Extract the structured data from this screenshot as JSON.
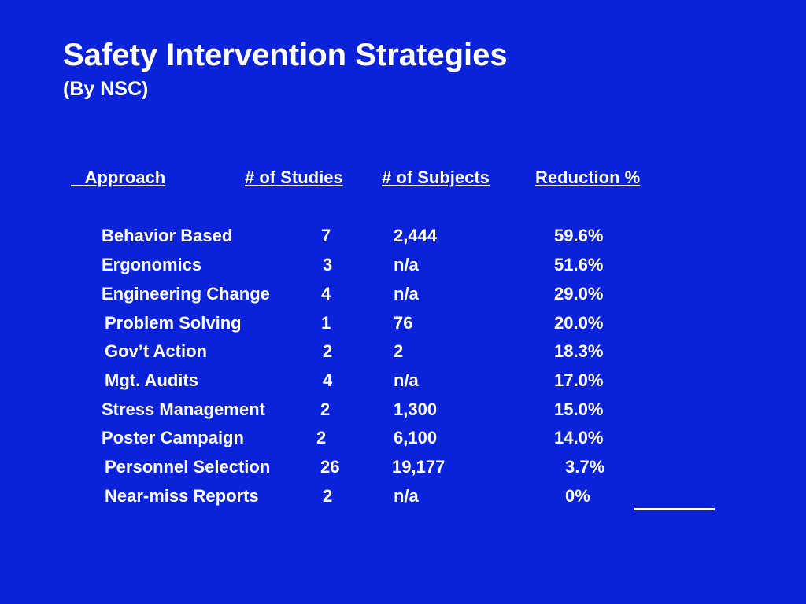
{
  "slide": {
    "title": "Safety Intervention Strategies",
    "subtitle": "(By NSC)",
    "colors": {
      "background": "#0a22d8",
      "text": "#ffffff"
    }
  },
  "table": {
    "headers": {
      "approach": "   Approach",
      "studies": "# of Studies",
      "subjects": "# of Subjects",
      "reduction": "Reduction %"
    },
    "rows": [
      {
        "approach": "Behavior Based",
        "studies": "7",
        "subjects": "2,444",
        "reduction": "59.6%"
      },
      {
        "approach": "Ergonomics",
        "studies": "3",
        "subjects": "n/a",
        "reduction": "51.6%"
      },
      {
        "approach": "Engineering Change",
        "studies": "4",
        "subjects": "n/a",
        "reduction": "29.0%"
      },
      {
        "approach": "Problem Solving",
        "studies": "1",
        "subjects": "76",
        "reduction": "20.0%"
      },
      {
        "approach": "Gov’t Action",
        "studies": "2",
        "subjects": "2",
        "reduction": "18.3%"
      },
      {
        "approach": "Mgt. Audits",
        "studies": "4",
        "subjects": "n/a",
        "reduction": "17.0%"
      },
      {
        "approach": "Stress Management",
        "studies": "2",
        "subjects": "1,300",
        "reduction": "15.0%"
      },
      {
        "approach": "Poster Campaign",
        "studies": "2",
        "subjects": "6,100",
        "reduction": "14.0%"
      },
      {
        "approach": "Personnel Selection",
        "studies": "26",
        "subjects": "19,177",
        "reduction": "3.7%"
      },
      {
        "approach": "Near-miss Reports",
        "studies": "2",
        "subjects": "n/a",
        "reduction": "0%"
      }
    ]
  }
}
